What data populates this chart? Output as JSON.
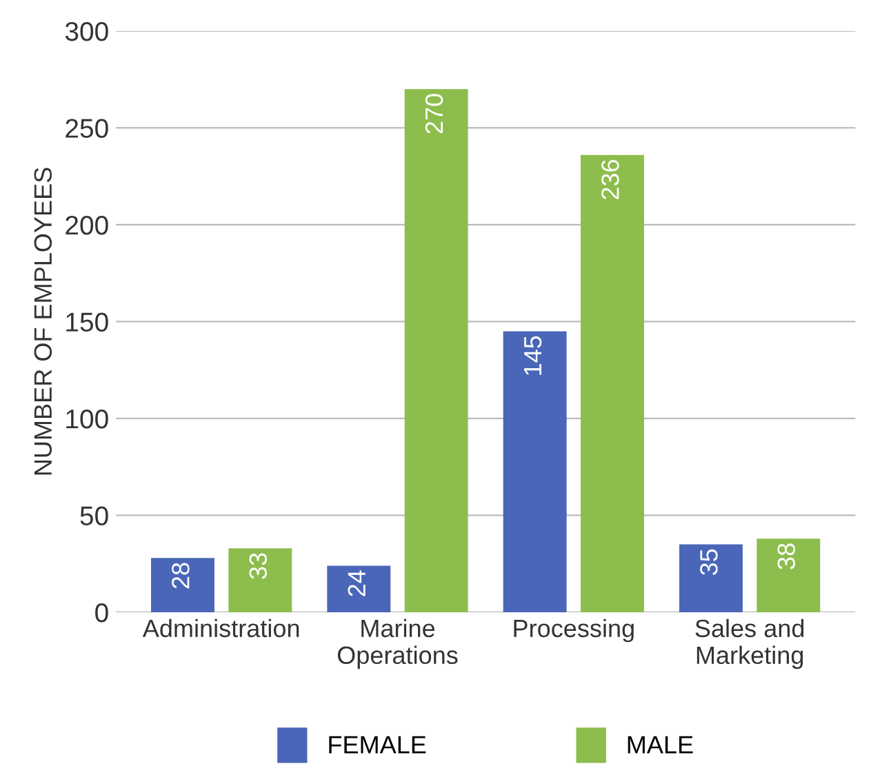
{
  "chart_data": {
    "type": "bar",
    "ylabel": "NUMBER OF EMPLOYEES",
    "categories": [
      "Administration",
      "Marine\nOperations",
      "Processing",
      "Sales and\nMarketing"
    ],
    "series": [
      {
        "name": "FEMALE",
        "color": "#4a66b8",
        "values": [
          28,
          24,
          145,
          35
        ]
      },
      {
        "name": "MALE",
        "color": "#8dbd4c",
        "values": [
          33,
          270,
          236,
          38
        ]
      }
    ],
    "ylim": [
      0,
      300
    ],
    "yticks": [
      0,
      50,
      100,
      150,
      200,
      250,
      300
    ],
    "grid": "y",
    "legend": "bottom",
    "data_labels": true
  }
}
